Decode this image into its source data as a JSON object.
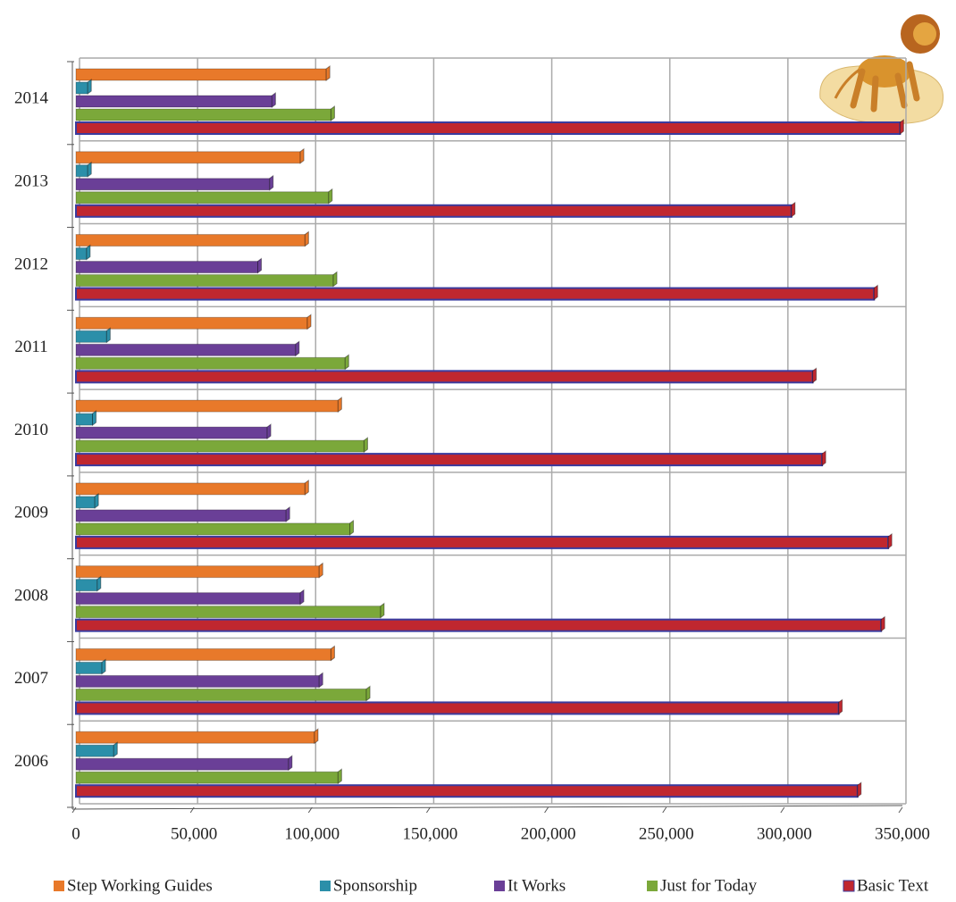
{
  "chart_data": {
    "type": "bar",
    "orientation": "horizontal",
    "categories": [
      "2006",
      "2007",
      "2008",
      "2009",
      "2010",
      "2011",
      "2012",
      "2013",
      "2014"
    ],
    "series": [
      {
        "name": "Step Working Guides",
        "color": "#e8792a",
        "values": [
          101000,
          108000,
          103000,
          97000,
          111000,
          98000,
          97000,
          95000,
          106000
        ]
      },
      {
        "name": "Sponsorship",
        "color": "#2b8fa9",
        "values": [
          16000,
          11000,
          9000,
          8000,
          7000,
          13000,
          4500,
          5000,
          5000
        ]
      },
      {
        "name": "It Works",
        "color": "#6a3f97",
        "values": [
          90000,
          103000,
          95000,
          89000,
          81000,
          93000,
          77000,
          82000,
          83000
        ]
      },
      {
        "name": "Just for Today",
        "color": "#7ba83a",
        "values": [
          111000,
          123000,
          129000,
          116000,
          122000,
          114000,
          109000,
          107000,
          108000
        ]
      },
      {
        "name": "Basic Text",
        "color": "#c0272f",
        "values": [
          331000,
          323000,
          341000,
          344000,
          316000,
          312000,
          338000,
          303000,
          349000
        ]
      }
    ],
    "xlim": [
      0,
      350000
    ],
    "xticks": [
      0,
      {
        "value": 50000,
        "label": "50,000"
      },
      {
        "value": 100000,
        "label": "100,000"
      },
      {
        "value": 150000,
        "label": "150,000"
      },
      {
        "value": 200000,
        "label": "200,000"
      },
      {
        "value": 250000,
        "label": "250,000"
      },
      {
        "value": 300000,
        "label": "300,000"
      },
      {
        "value": 350000,
        "label": "350,000"
      }
    ],
    "grid": true,
    "legend": "bottom"
  }
}
